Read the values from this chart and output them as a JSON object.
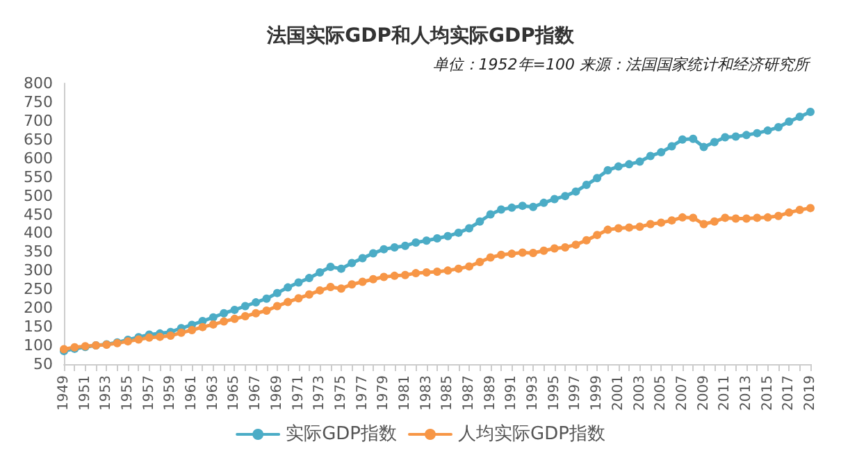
{
  "chart_data": {
    "type": "line",
    "title": "法国实际GDP和人均实际GDP指数",
    "subtitle": "单位：1952年=100 来源：法国国家统计和经济研究所",
    "categories": [
      "1949",
      null,
      "1951",
      null,
      "1953",
      null,
      "1955",
      null,
      "1957",
      null,
      "1959",
      null,
      "1961",
      null,
      "1963",
      null,
      "1965",
      null,
      "1967",
      null,
      "1969",
      null,
      "1971",
      null,
      "1973",
      null,
      "1975",
      null,
      "1977",
      null,
      "1979",
      null,
      "1981",
      null,
      "1983",
      null,
      "1985",
      null,
      "1987",
      null,
      "1989",
      null,
      "1991",
      null,
      "1993",
      null,
      "1995",
      null,
      "1997",
      null,
      "1999",
      null,
      "2001",
      null,
      "2003",
      null,
      "2005",
      null,
      "2007",
      null,
      "2009",
      null,
      "2011",
      null,
      "2013",
      null,
      "2015",
      null,
      "2017",
      null,
      "2019"
    ],
    "series": [
      {
        "name": "实际GDP指数",
        "color": "#4bacc6",
        "values": [
          85,
          91,
          96,
          100,
          103,
          108,
          115,
          122,
          129,
          132,
          136,
          146,
          155,
          165,
          175,
          186,
          195,
          205,
          215,
          225,
          240,
          255,
          268,
          280,
          295,
          310,
          305,
          320,
          333,
          346,
          357,
          362,
          366,
          375,
          380,
          386,
          392,
          401,
          413,
          431,
          450,
          463,
          468,
          473,
          470,
          481,
          491,
          499,
          511,
          529,
          547,
          568,
          578,
          584,
          591,
          606,
          616,
          632,
          650,
          652,
          630,
          643,
          656,
          658,
          662,
          667,
          674,
          683,
          698,
          711,
          724
        ]
      },
      {
        "name": "人均实际GDP指数",
        "color": "#f79646",
        "values": [
          90,
          95,
          98,
          100,
          102,
          106,
          111,
          116,
          121,
          123,
          126,
          134,
          141,
          149,
          156,
          164,
          171,
          178,
          186,
          193,
          205,
          216,
          226,
          236,
          247,
          256,
          252,
          263,
          270,
          277,
          283,
          286,
          288,
          293,
          295,
          297,
          300,
          305,
          311,
          323,
          335,
          342,
          345,
          348,
          347,
          353,
          359,
          362,
          369,
          381,
          395,
          409,
          413,
          415,
          417,
          424,
          428,
          434,
          442,
          441,
          424,
          431,
          441,
          439,
          439,
          441,
          442,
          446,
          455,
          462,
          467
        ]
      }
    ],
    "ylim": [
      50,
      800
    ],
    "yticks": [
      50,
      100,
      150,
      200,
      250,
      300,
      350,
      400,
      450,
      500,
      550,
      600,
      650,
      700,
      750,
      800
    ],
    "grid": false,
    "legend": "bottom",
    "marker": "circle",
    "line_style": "solid"
  }
}
